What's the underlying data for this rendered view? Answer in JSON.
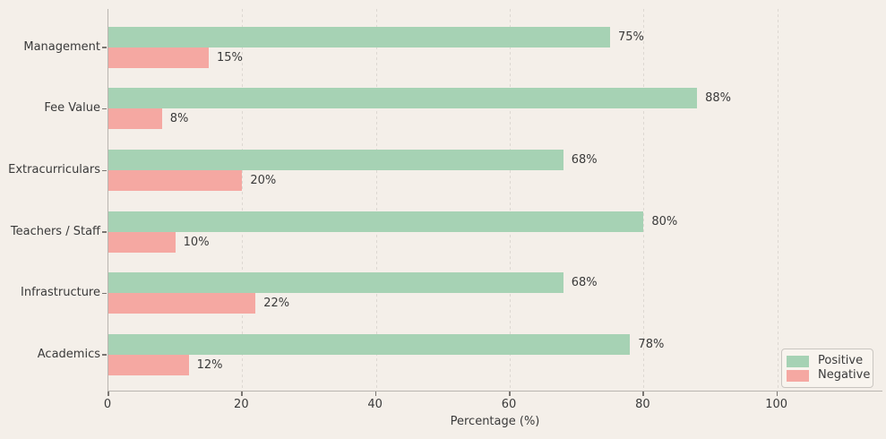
{
  "chart_data": {
    "type": "bar",
    "orientation": "horizontal",
    "title": "",
    "xlabel": "Percentage (%)",
    "ylabel": "",
    "categories": [
      "Management",
      "Fee Value",
      "Extracurriculars",
      "Teachers / Staff",
      "Infrastructure",
      "Academics"
    ],
    "series": [
      {
        "name": "Positive",
        "color": "#a6d2b4",
        "values": [
          75,
          88,
          68,
          80,
          68,
          78
        ]
      },
      {
        "name": "Negative",
        "color": "#f5a8a2",
        "values": [
          15,
          8,
          20,
          10,
          22,
          12
        ]
      }
    ],
    "value_labels": [
      [
        "75%",
        "88%",
        "68%",
        "80%",
        "68%",
        "78%"
      ],
      [
        "15%",
        "8%",
        "20%",
        "10%",
        "22%",
        "12%"
      ]
    ],
    "value_suffix": "%",
    "x_ticks": [
      0,
      20,
      40,
      60,
      80,
      100
    ],
    "xlim": [
      0,
      115.8
    ],
    "grid": "vertical dashed",
    "legend": {
      "position": "lower right",
      "entries": [
        "Positive",
        "Negative"
      ]
    }
  },
  "colors": {
    "background": "#f4efe9",
    "positive": "#a6d2b4",
    "negative": "#f5a8a2",
    "gridline": "#ddd8d2",
    "text": "#3a3a3a"
  }
}
